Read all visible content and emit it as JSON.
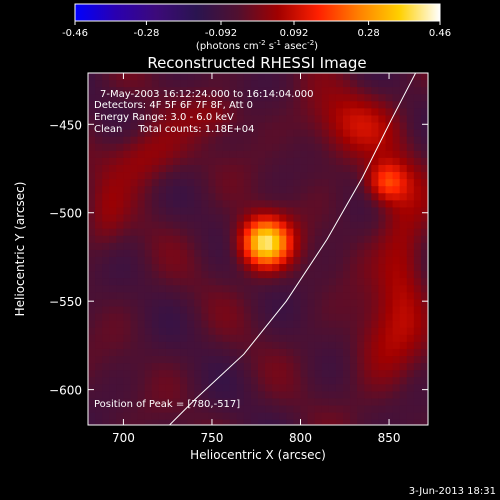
{
  "chart_data": {
    "type": "heatmap",
    "title": "Reconstructed RHESSI Image",
    "xlabel": "Heliocentric X (arcsec)",
    "ylabel": "Heliocentric Y (arcsec)",
    "xlim": [
      680,
      872
    ],
    "ylim": [
      -620,
      -421
    ],
    "xticks": [
      700,
      750,
      800,
      850
    ],
    "yticks": [
      -450,
      -500,
      -550,
      -600
    ],
    "colorbar": {
      "label_text": "(photons cm",
      "label_exp1": "-2",
      "label_mid1": " s",
      "label_exp2": "-1",
      "label_mid2": " asec",
      "label_exp3": "-2",
      "label_end": ")",
      "range": [
        -0.46,
        0.46
      ],
      "ticks": [
        "-0.46",
        "-0.28",
        "-0.092",
        "0.092",
        "0.28",
        "0.46"
      ],
      "colormap": [
        "#0000ff",
        "#2a00b0",
        "#3c0a7a",
        "#2a1450",
        "#501030",
        "#a00000",
        "#ff2000",
        "#ff8000",
        "#ffd000",
        "#ffffff"
      ]
    },
    "annotations": [
      "7-May-2003 16:12:24.000 to 16:14:04.000",
      "Detectors: 4F 5F 6F 7F 8F, Att 0",
      "Energy Range: 3.0 - 6.0 keV",
      "Clean     Total counts: 1.18E+04"
    ],
    "peak_label": "Position of Peak = [780,-517]",
    "peak": {
      "x": 780,
      "y": -517,
      "value": 0.46
    },
    "sources": [
      {
        "x": 780,
        "y": -517,
        "sx": 10,
        "sy": 10,
        "amp": 0.46
      },
      {
        "x": 848,
        "y": -483,
        "sx": 8,
        "sy": 8,
        "amp": 0.22
      },
      {
        "x": 712,
        "y": -468,
        "sx": 15,
        "sy": 12,
        "amp": 0.12
      },
      {
        "x": 828,
        "y": -450,
        "sx": 18,
        "sy": 14,
        "amp": 0.13
      },
      {
        "x": 858,
        "y": -525,
        "sx": 10,
        "sy": 35,
        "amp": 0.13
      },
      {
        "x": 690,
        "y": -505,
        "sx": 8,
        "sy": 15,
        "amp": 0.07
      },
      {
        "x": 845,
        "y": -575,
        "sx": 12,
        "sy": 18,
        "amp": 0.09
      },
      {
        "x": 752,
        "y": -445,
        "sx": 12,
        "sy": 8,
        "amp": 0.08
      }
    ],
    "limb_curve": [
      [
        726,
        -620
      ],
      [
        741,
        -605
      ],
      [
        768,
        -580
      ],
      [
        792,
        -550
      ],
      [
        815,
        -515
      ],
      [
        835,
        -480
      ],
      [
        851,
        -448
      ],
      [
        865,
        -421
      ]
    ],
    "timestamp": "3-Jun-2013 18:31"
  }
}
